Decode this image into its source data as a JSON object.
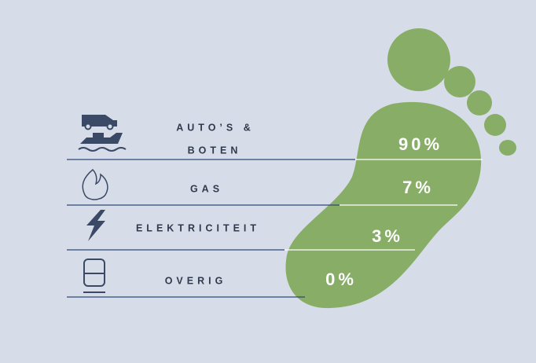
{
  "rows": [
    {
      "label_lines": [
        "AUTO’S &",
        "BOTEN"
      ],
      "value": "90%"
    },
    {
      "label_lines": [
        "GAS"
      ],
      "value": "7%"
    },
    {
      "label_lines": [
        "ELEKTRICITEIT"
      ],
      "value": "3%"
    },
    {
      "label_lines": [
        "OVERIG"
      ],
      "value": "0%"
    }
  ]
}
